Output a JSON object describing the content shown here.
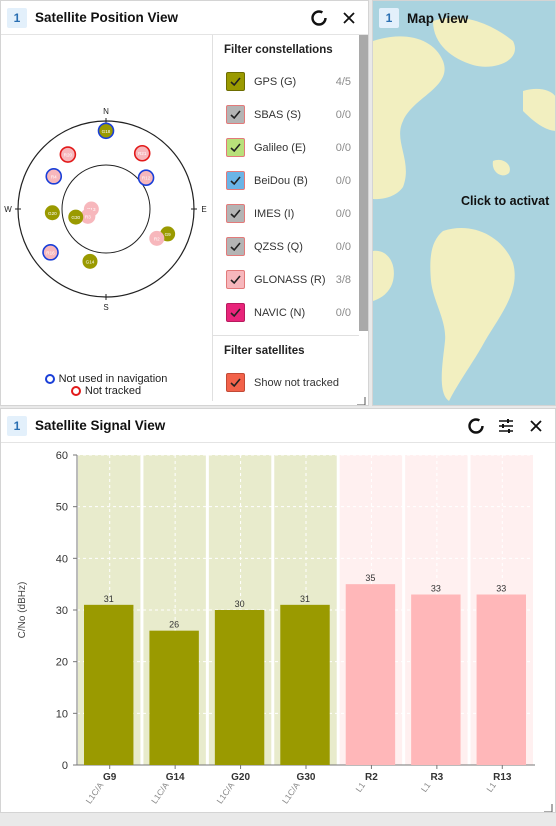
{
  "position_view": {
    "index": "1",
    "title": "Satellite Position View",
    "refresh_icon": "refresh-ring-icon",
    "close_icon": "close-icon",
    "compass": {
      "north": "N",
      "south": "S",
      "east": "E",
      "west": "W"
    },
    "satellites": [
      {
        "id": "G18",
        "az": 0,
        "el": 10,
        "color": "#9a9a00",
        "ring": "#1a3fd8"
      },
      {
        "id": "R20",
        "az": 325,
        "el": 22,
        "color": "#f7b7bc",
        "ring": "#e21a1a"
      },
      {
        "id": "R21",
        "az": 33,
        "el": 22,
        "color": "#f7b7bc",
        "ring": "#e21a1a"
      },
      {
        "id": "R4",
        "az": 302,
        "el": 27,
        "color": "#f7b7bc",
        "ring": "#1a3fd8"
      },
      {
        "id": "R12",
        "az": 52,
        "el": 38,
        "color": "#f7b7bc",
        "ring": "#1a3fd8"
      },
      {
        "id": "R13",
        "az": 270,
        "el": 75,
        "color": "#f7b7bc",
        "ring": ""
      },
      {
        "id": "R3",
        "az": 248,
        "el": 70,
        "color": "#f7b7bc",
        "ring": ""
      },
      {
        "id": "G20",
        "az": 266,
        "el": 35,
        "color": "#9a9a00",
        "ring": ""
      },
      {
        "id": "G30",
        "az": 255,
        "el": 58,
        "color": "#9a9a00",
        "ring": ""
      },
      {
        "id": "G9",
        "az": 112,
        "el": 22,
        "color": "#9a9a00",
        "ring": ""
      },
      {
        "id": "R2",
        "az": 120,
        "el": 30,
        "color": "#f7b7bc",
        "ring": ""
      },
      {
        "id": "R16",
        "az": 232,
        "el": 18,
        "color": "#f7b7bc",
        "ring": "#1a3fd8"
      },
      {
        "id": "G14",
        "az": 197,
        "el": 34,
        "color": "#9a9a00",
        "ring": ""
      }
    ],
    "filter_constellations": {
      "heading": "Filter constellations",
      "items": [
        {
          "label": "GPS (G)",
          "count": "4/5",
          "fill": "#9a9a00",
          "border": "#6d6d00"
        },
        {
          "label": "SBAS (S)",
          "count": "0/0",
          "fill": "#b4b4b4",
          "border": "#e27a7a"
        },
        {
          "label": "Galileo (E)",
          "count": "0/0",
          "fill": "#b8e07a",
          "border": "#e27a7a"
        },
        {
          "label": "BeiDou (B)",
          "count": "0/0",
          "fill": "#6ab4e6",
          "border": "#e27a7a"
        },
        {
          "label": "IMES (I)",
          "count": "0/0",
          "fill": "#b4b4b4",
          "border": "#e27a7a"
        },
        {
          "label": "QZSS (Q)",
          "count": "0/0",
          "fill": "#b4b4b4",
          "border": "#e27a7a"
        },
        {
          "label": "GLONASS (R)",
          "count": "3/8",
          "fill": "#f7b7bc",
          "border": "#e27a7a"
        },
        {
          "label": "NAVIC (N)",
          "count": "0/0",
          "fill": "#e8247a",
          "border": "#b81a5e"
        }
      ]
    },
    "filter_satellites": {
      "heading": "Filter satellites",
      "items": [
        {
          "label": "Show not tracked",
          "fill": "#f2624a",
          "border": "#c24a36"
        }
      ]
    },
    "legend": {
      "not_used": "Not used in navigation",
      "not_tracked": "Not tracked",
      "not_used_color": "#1a3fd8",
      "not_tracked_color": "#e21a1a"
    }
  },
  "map_view": {
    "index": "1",
    "title": "Map View",
    "overlay_text": "Click to activat",
    "water_color": "#aad3df",
    "land_color": "#f2efc0"
  },
  "signal_view": {
    "index": "1",
    "title": "Satellite Signal View",
    "refresh_icon": "refresh-ring-icon",
    "settings_icon": "sliders-icon",
    "close_icon": "close-icon"
  },
  "chart_data": {
    "type": "bar",
    "ylabel": "C/No (dBHz)",
    "ylim": [
      0,
      60
    ],
    "yticks": [
      0,
      10,
      20,
      30,
      40,
      50,
      60
    ],
    "grid": true,
    "categories": [
      "G9",
      "G14",
      "G20",
      "G30",
      "R2",
      "R3",
      "R13"
    ],
    "signals": [
      "L1C/A",
      "L1C/A",
      "L1C/A",
      "L1C/A",
      "L1",
      "L1",
      "L1"
    ],
    "values": [
      31,
      26,
      30,
      31,
      35,
      33,
      33
    ],
    "bar_colors": [
      "#9a9a00",
      "#9a9a00",
      "#9a9a00",
      "#9a9a00",
      "#ffb7b9",
      "#ffb7b9",
      "#ffb7b9"
    ],
    "background_colors": [
      "#e8ebcc",
      "#e8ebcc",
      "#e8ebcc",
      "#e8ebcc",
      "#fff0f0",
      "#fff0f0",
      "#fff0f0"
    ]
  }
}
